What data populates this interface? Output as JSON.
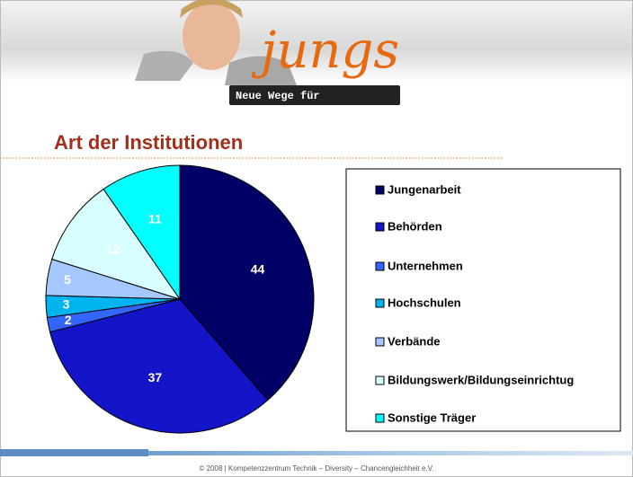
{
  "header": {
    "logo": "jungs",
    "tagline": "Neue Wege für"
  },
  "footer": "© 2008 | Kompetenzzentrum Technik – Diversity – Chancengleichheit e.V.",
  "chart_data": {
    "type": "pie",
    "title": "Art der Institutionen",
    "categories": [
      "Jungenarbeit",
      "Behörden",
      "Unternehmen",
      "Hochschulen",
      "Verbände",
      "Bildungswerk/Bildungseinrichtug",
      "Sonstige Träger"
    ],
    "values": [
      44,
      37,
      2,
      3,
      5,
      12,
      11
    ],
    "colors": [
      "#000066",
      "#1414c8",
      "#3366ff",
      "#00b4f0",
      "#a4c8ff",
      "#d8ffff",
      "#00ffff"
    ]
  }
}
